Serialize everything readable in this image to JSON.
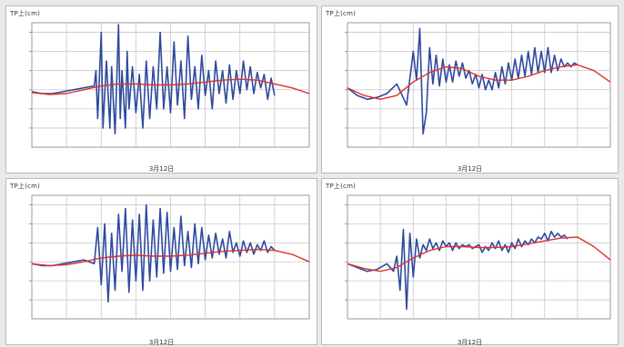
{
  "colors": {
    "observed": "#2e4a9e",
    "predicted": "#e0302a",
    "grid": "#c8c8c8",
    "axis": "#808080"
  },
  "chart_data": [
    {
      "type": "line",
      "ylabel": "TP上(cm)",
      "xlabel": "3月12日",
      "ylim": [
        -3,
        3.5
      ],
      "grid": true,
      "y_gridlines": [
        -2,
        -1,
        0,
        1,
        2,
        3
      ],
      "x_gridlines": [
        1,
        2,
        3,
        4,
        5,
        6,
        7
      ],
      "xlim": [
        0,
        8
      ],
      "series": [
        {
          "values_key": "obs",
          "x": [
            0,
            0.3,
            0.6,
            0.9,
            1.2,
            1.5,
            1.8,
            1.85,
            1.9,
            2.0,
            2.05,
            2.15,
            2.25,
            2.3,
            2.4,
            2.5,
            2.55,
            2.6,
            2.7,
            2.75,
            2.8,
            2.9,
            3.0,
            3.1,
            3.2,
            3.3,
            3.4,
            3.5,
            3.6,
            3.7,
            3.8,
            3.9,
            4.0,
            4.1,
            4.2,
            4.3,
            4.4,
            4.5,
            4.6,
            4.7,
            4.8,
            4.9,
            5.0,
            5.1,
            5.2,
            5.3,
            5.4,
            5.5,
            5.6,
            5.7,
            5.8,
            5.9,
            6.0,
            6.1,
            6.2,
            6.3,
            6.4,
            6.5,
            6.6,
            6.7,
            6.8,
            6.9,
            7.0
          ],
          "y": [
            -0.1,
            -0.2,
            -0.2,
            -0.1,
            0,
            0.1,
            0.2,
            1.0,
            -1.5,
            3.0,
            -2.0,
            1.5,
            -2.0,
            1.2,
            -2.3,
            3.4,
            -1.5,
            1.0,
            -2.0,
            2.0,
            -1.0,
            1.2,
            -1.2,
            0.8,
            -2.0,
            1.5,
            -1.5,
            1.2,
            -1.0,
            3.0,
            -1.0,
            1.2,
            -1.2,
            2.5,
            -0.8,
            1.5,
            -1.5,
            2.8,
            -0.5,
            1.2,
            -1.0,
            1.8,
            -0.3,
            1.0,
            -1.0,
            1.5,
            -0.2,
            1.0,
            -0.7,
            1.3,
            -0.5,
            1.0,
            -0.2,
            1.5,
            0.0,
            1.2,
            -0.2,
            0.9,
            0.1,
            0.8,
            -0.5,
            0.6,
            -0.3
          ]
        },
        {
          "values_key": "pred",
          "x": [
            0,
            0.5,
            1,
            1.5,
            2,
            2.5,
            3,
            3.5,
            4,
            4.5,
            5,
            5.5,
            6,
            6.5,
            7,
            7.5,
            8
          ],
          "y": [
            -0.15,
            -0.25,
            -0.2,
            0,
            0.2,
            0.3,
            0.3,
            0.25,
            0.25,
            0.3,
            0.4,
            0.5,
            0.55,
            0.5,
            0.3,
            0.1,
            -0.2
          ]
        }
      ]
    },
    {
      "type": "line",
      "ylabel": "TP上(cm)",
      "xlabel": "3月12日",
      "ylim": [
        -3,
        3.5
      ],
      "grid": true,
      "y_gridlines": [
        -2,
        -1,
        0,
        1,
        2,
        3
      ],
      "x_gridlines": [
        1,
        2,
        3,
        4,
        5,
        6,
        7
      ],
      "xlim": [
        0,
        8
      ],
      "series": [
        {
          "values_key": "obs",
          "x": [
            0,
            0.3,
            0.6,
            0.9,
            1.2,
            1.5,
            1.8,
            2.0,
            2.1,
            2.2,
            2.3,
            2.4,
            2.5,
            2.6,
            2.7,
            2.8,
            2.9,
            3.0,
            3.1,
            3.2,
            3.3,
            3.4,
            3.5,
            3.6,
            3.7,
            3.8,
            3.9,
            4.0,
            4.1,
            4.2,
            4.3,
            4.4,
            4.5,
            4.6,
            4.7,
            4.8,
            4.9,
            5.0,
            5.1,
            5.2,
            5.3,
            5.4,
            5.5,
            5.6,
            5.7,
            5.8,
            5.9,
            6.0,
            6.1,
            6.2,
            6.3,
            6.4,
            6.5,
            6.6,
            6.7,
            6.8,
            6.9,
            7.0
          ],
          "y": [
            0.1,
            -0.3,
            -0.5,
            -0.4,
            -0.2,
            0.3,
            -0.8,
            2.0,
            0.5,
            3.2,
            -2.3,
            -1.2,
            2.2,
            0.3,
            1.8,
            0.2,
            1.6,
            0.4,
            1.3,
            0.4,
            1.5,
            0.7,
            1.4,
            0.6,
            1.0,
            0.3,
            0.8,
            0.1,
            0.8,
            0.0,
            0.5,
            0.0,
            0.9,
            0.1,
            1.2,
            0.3,
            1.4,
            0.5,
            1.6,
            0.6,
            1.8,
            0.7,
            2.0,
            0.8,
            2.2,
            0.9,
            2.0,
            0.9,
            2.2,
            0.9,
            1.8,
            1.0,
            1.6,
            1.2,
            1.4,
            1.2,
            1.4,
            1.3
          ]
        },
        {
          "values_key": "pred",
          "x": [
            0,
            0.5,
            1,
            1.5,
            2,
            2.5,
            3,
            3.5,
            4,
            4.5,
            5,
            5.5,
            6,
            6.5,
            7,
            7.5,
            8
          ],
          "y": [
            0.1,
            -0.3,
            -0.5,
            -0.3,
            0.4,
            0.9,
            1.2,
            1.1,
            0.7,
            0.5,
            0.5,
            0.7,
            1.0,
            1.2,
            1.3,
            1.0,
            0.4
          ]
        }
      ]
    },
    {
      "type": "line",
      "ylabel": "TP上(cm)",
      "xlabel": "3月12日",
      "ylim": [
        -3,
        3.5
      ],
      "grid": true,
      "y_gridlines": [
        -2,
        -1,
        0,
        1,
        2,
        3
      ],
      "x_gridlines": [
        1,
        2,
        3,
        4,
        5,
        6,
        7
      ],
      "xlim": [
        0,
        8
      ],
      "series": [
        {
          "values_key": "obs",
          "x": [
            0,
            0.3,
            0.6,
            0.9,
            1.2,
            1.5,
            1.8,
            1.9,
            2.0,
            2.1,
            2.2,
            2.3,
            2.4,
            2.5,
            2.6,
            2.7,
            2.8,
            2.9,
            3.0,
            3.1,
            3.2,
            3.3,
            3.4,
            3.5,
            3.6,
            3.7,
            3.8,
            3.9,
            4.0,
            4.1,
            4.2,
            4.3,
            4.4,
            4.5,
            4.6,
            4.7,
            4.8,
            4.9,
            5.0,
            5.1,
            5.2,
            5.3,
            5.4,
            5.5,
            5.6,
            5.7,
            5.8,
            5.9,
            6.0,
            6.1,
            6.2,
            6.3,
            6.4,
            6.5,
            6.6,
            6.7,
            6.8,
            6.9,
            7.0
          ],
          "y": [
            -0.1,
            -0.2,
            -0.2,
            -0.1,
            0.0,
            0.1,
            -0.1,
            1.8,
            -1.2,
            2.0,
            -2.1,
            1.5,
            -1.5,
            2.5,
            -0.5,
            2.8,
            -1.6,
            2.2,
            -1.0,
            2.5,
            -1.5,
            3.0,
            -1.0,
            2.2,
            -0.8,
            2.8,
            -0.6,
            2.6,
            -0.5,
            1.8,
            -0.4,
            2.4,
            -0.2,
            1.6,
            -0.3,
            2.0,
            -0.1,
            1.8,
            0.1,
            1.4,
            0.2,
            1.5,
            0.4,
            1.2,
            0.2,
            1.6,
            0.5,
            1.0,
            0.3,
            1.1,
            0.5,
            1.0,
            0.4,
            0.9,
            0.6,
            1.1,
            0.5,
            0.8,
            0.6
          ]
        },
        {
          "values_key": "pred",
          "x": [
            0,
            0.5,
            1,
            1.5,
            2,
            2.5,
            3,
            3.5,
            4,
            4.5,
            5,
            5.5,
            6,
            6.5,
            7,
            7.5,
            8
          ],
          "y": [
            -0.1,
            -0.2,
            -0.15,
            0.0,
            0.2,
            0.3,
            0.35,
            0.3,
            0.3,
            0.35,
            0.45,
            0.55,
            0.6,
            0.65,
            0.6,
            0.4,
            0.0
          ]
        }
      ]
    },
    {
      "type": "line",
      "ylabel": "TP上(cm)",
      "xlabel": "3月12日",
      "ylim": [
        -3,
        3.5
      ],
      "grid": true,
      "y_gridlines": [
        -2,
        -1,
        0,
        1,
        2,
        3
      ],
      "x_gridlines": [
        1,
        2,
        3,
        4,
        5,
        6,
        7
      ],
      "xlim": [
        0,
        8
      ],
      "series": [
        {
          "values_key": "obs",
          "x": [
            0,
            0.3,
            0.6,
            0.9,
            1.2,
            1.4,
            1.5,
            1.6,
            1.7,
            1.8,
            1.9,
            2.0,
            2.1,
            2.2,
            2.3,
            2.4,
            2.5,
            2.6,
            2.7,
            2.8,
            2.9,
            3.0,
            3.1,
            3.2,
            3.3,
            3.4,
            3.5,
            3.6,
            3.7,
            3.8,
            3.9,
            4.0,
            4.1,
            4.2,
            4.3,
            4.4,
            4.5,
            4.6,
            4.7,
            4.8,
            4.9,
            5.0,
            5.1,
            5.2,
            5.3,
            5.4,
            5.5,
            5.6,
            5.7,
            5.8,
            5.9,
            6.0,
            6.1,
            6.2,
            6.3,
            6.4,
            6.5,
            6.6,
            6.7
          ],
          "y": [
            -0.1,
            -0.3,
            -0.5,
            -0.4,
            -0.1,
            -0.5,
            0.3,
            -1.5,
            1.7,
            -2.5,
            1.5,
            -0.8,
            1.2,
            0.2,
            0.9,
            0.6,
            1.2,
            0.7,
            1.0,
            0.6,
            1.1,
            0.8,
            1.0,
            0.6,
            1.0,
            0.7,
            0.9,
            0.8,
            0.9,
            0.7,
            0.8,
            0.9,
            0.5,
            0.8,
            0.6,
            1.0,
            0.7,
            1.1,
            0.6,
            0.9,
            0.5,
            1.0,
            0.7,
            1.2,
            0.8,
            1.1,
            0.9,
            1.2,
            1.0,
            1.3,
            1.2,
            1.5,
            1.1,
            1.6,
            1.3,
            1.5,
            1.3,
            1.4,
            1.2
          ]
        },
        {
          "values_key": "pred",
          "x": [
            0,
            0.5,
            1,
            1.5,
            2,
            2.5,
            3,
            3.5,
            4,
            4.5,
            5,
            5.5,
            6,
            6.5,
            7,
            7.5,
            8
          ],
          "y": [
            -0.1,
            -0.35,
            -0.5,
            -0.3,
            0.2,
            0.6,
            0.8,
            0.8,
            0.75,
            0.75,
            0.8,
            0.95,
            1.1,
            1.25,
            1.3,
            0.8,
            0.1
          ]
        }
      ]
    }
  ]
}
